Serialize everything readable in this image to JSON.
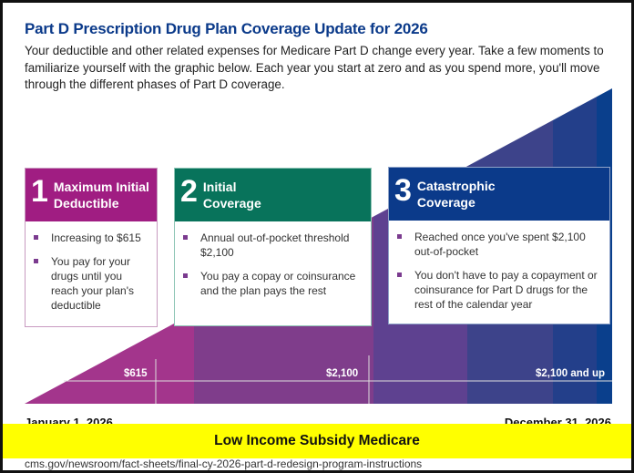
{
  "header": {
    "title": "Part D Prescription Drug Plan Coverage Update for 2026",
    "intro": "Your deductible and other related expenses for Medicare Part D change every year. Take a few moments to familiarize yourself with the graphic below. Each year you start at zero and as you spend more, you'll move through the different phases of Part D coverage."
  },
  "phases": [
    {
      "number": "1",
      "title": "Maximum Initial Deductible",
      "color": "#a01d82",
      "bullets": [
        "Increasing to $615",
        "You pay for your drugs until you reach your plan's deductible"
      ]
    },
    {
      "number": "2",
      "title": "Initial Coverage",
      "color": "#08735b",
      "bullets": [
        "Annual out-of-pocket threshold $2,100",
        "You pay a copay or coinsurance and the plan pays the rest"
      ]
    },
    {
      "number": "3",
      "title": "Catastrophic Coverage",
      "color": "#0b3a8a",
      "bullets": [
        "Reached once you've spent $2,100 out-of-pocket",
        "You don't have to pay a copayment or coinsurance for Part D drugs for the rest of the calendar year"
      ]
    }
  ],
  "markers": [
    "$615",
    "$2,100",
    "$2,100 and up"
  ],
  "timeline": {
    "start": "January 1, 2026",
    "end": "December 31, 2026"
  },
  "banner": "Low Income Subsidy Medicare",
  "source": "cms.gov/newsroom/fact-sheets/final-cy-2026-part-d-redesign-program-instructions"
}
